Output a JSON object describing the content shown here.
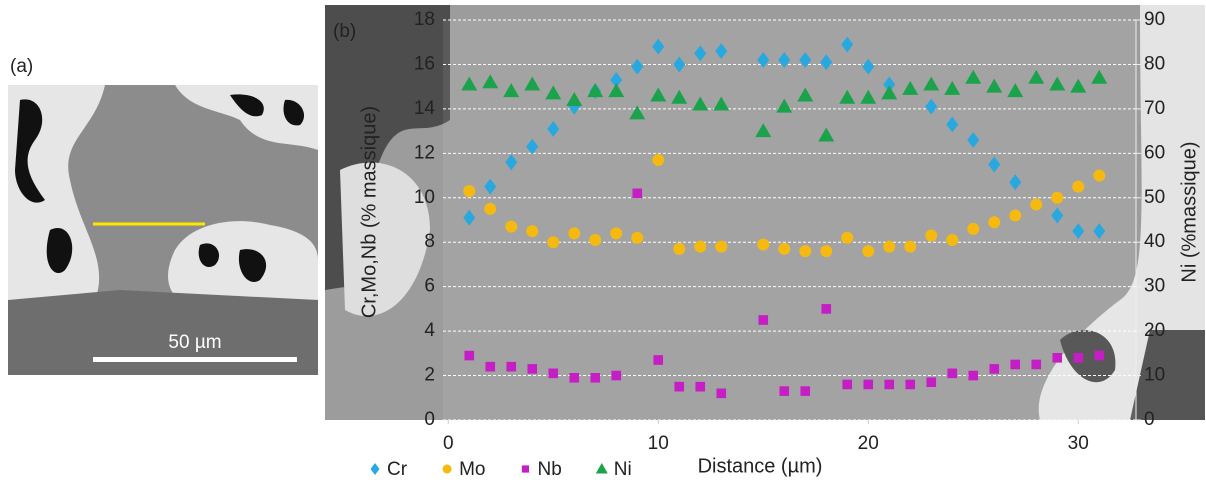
{
  "figure": {
    "panel_a_label": "(a)",
    "scale_bar_label": "50 µm"
  },
  "chart_data": {
    "type": "scatter",
    "panel_label": "(b)",
    "x_label": "Distance (µm)",
    "y_label": "Cr,Mo,Nb (% massique)",
    "y2_label": "Ni (%massique)",
    "xlim": [
      -0.25,
      32.75
    ],
    "xticks": [
      0,
      10,
      20,
      30
    ],
    "ylim": [
      0,
      18
    ],
    "yticks": [
      0,
      2,
      4,
      6,
      8,
      10,
      12,
      14,
      16,
      18
    ],
    "y2lim": [
      0,
      90
    ],
    "y2ticks": [
      0,
      10,
      20,
      30,
      40,
      50,
      60,
      70,
      80,
      90
    ],
    "grid": true,
    "legend": "bottom-left",
    "series": [
      {
        "name": "Cr",
        "color": "#29a8e0",
        "marker": "diamond",
        "x": [
          1,
          2,
          3,
          4,
          5,
          6,
          7,
          8,
          9,
          10,
          11,
          12,
          13,
          15,
          16,
          17,
          18,
          19,
          20,
          21,
          23,
          24,
          25,
          26,
          27,
          29,
          30,
          31
        ],
        "values": [
          9.1,
          10.5,
          11.6,
          12.3,
          13.1,
          14.1,
          14.8,
          15.3,
          15.9,
          16.8,
          16.0,
          16.5,
          16.6,
          16.2,
          16.2,
          16.2,
          16.1,
          16.9,
          15.9,
          15.1,
          14.1,
          13.3,
          12.6,
          11.5,
          10.7,
          9.2,
          8.5,
          8.5
        ]
      },
      {
        "name": "Mo",
        "color": "#f5b90f",
        "marker": "circle",
        "x": [
          1,
          2,
          3,
          4,
          5,
          6,
          7,
          8,
          9,
          10,
          11,
          12,
          13,
          15,
          16,
          17,
          18,
          19,
          20,
          21,
          22,
          23,
          24,
          25,
          26,
          27,
          28,
          29,
          30,
          31
        ],
        "values": [
          10.3,
          9.5,
          8.7,
          8.5,
          8.0,
          8.4,
          8.1,
          8.4,
          8.2,
          11.7,
          7.7,
          7.8,
          7.8,
          7.9,
          7.7,
          7.6,
          7.6,
          8.2,
          7.6,
          7.8,
          7.8,
          8.3,
          8.1,
          8.6,
          8.9,
          9.2,
          9.7,
          10.0,
          10.5,
          11.0
        ]
      },
      {
        "name": "Nb",
        "color": "#c41ec4",
        "marker": "square",
        "x": [
          1,
          2,
          3,
          4,
          5,
          6,
          7,
          8,
          9,
          10,
          11,
          12,
          13,
          15,
          16,
          17,
          18,
          19,
          20,
          21,
          22,
          23,
          24,
          25,
          26,
          27,
          28,
          29,
          30,
          31
        ],
        "values": [
          2.9,
          2.4,
          2.4,
          2.3,
          2.1,
          1.9,
          1.9,
          2.0,
          10.2,
          2.7,
          1.5,
          1.5,
          1.2,
          4.5,
          1.3,
          1.3,
          5.0,
          1.6,
          1.6,
          1.6,
          1.6,
          1.7,
          2.1,
          2.0,
          2.3,
          2.5,
          2.5,
          2.8,
          2.8,
          2.9
        ]
      },
      {
        "name": "Ni",
        "color": "#1aa34a",
        "marker": "triangle",
        "axis": "y2",
        "x": [
          1,
          2,
          3,
          4,
          5,
          6,
          7,
          8,
          9,
          10,
          11,
          12,
          13,
          15,
          16,
          17,
          18,
          19,
          20,
          21,
          22,
          23,
          24,
          25,
          26,
          27,
          28,
          29,
          30,
          31
        ],
        "values": [
          75.5,
          76,
          74,
          75.5,
          73.5,
          72,
          74,
          74,
          69,
          73,
          72.5,
          71,
          71,
          65,
          70.5,
          73,
          64,
          72.5,
          72.5,
          73.5,
          74.5,
          75.5,
          74.5,
          77,
          75,
          74,
          77,
          75.5,
          75,
          77
        ]
      }
    ]
  }
}
